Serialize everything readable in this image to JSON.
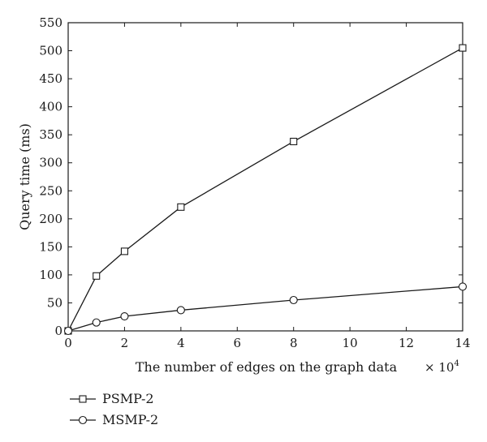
{
  "chart_data": {
    "type": "line",
    "title": "",
    "xlabel": "The number of edges on the graph data",
    "ylabel": "Query time (ms)",
    "x_multiplier_label": {
      "base": "× 10",
      "exponent": "4"
    },
    "xlim": [
      0,
      14
    ],
    "ylim": [
      0,
      550
    ],
    "xticks": [
      0,
      2,
      4,
      6,
      8,
      10,
      12,
      14
    ],
    "yticks": [
      0,
      50,
      100,
      150,
      200,
      250,
      300,
      350,
      400,
      450,
      500,
      550
    ],
    "xtick_labels": [
      "0",
      "2",
      "4",
      "6",
      "8",
      "10",
      "12",
      "14"
    ],
    "ytick_labels": [
      "0",
      "50",
      "100",
      "150",
      "200",
      "250",
      "300",
      "350",
      "400",
      "450",
      "500",
      "550"
    ],
    "grid": false,
    "legend_placement": "below-left",
    "series": [
      {
        "name": "PSMP-2",
        "marker": "square",
        "x": [
          0,
          1,
          2,
          4,
          8,
          14
        ],
        "y": [
          0,
          98,
          142,
          221,
          338,
          505
        ]
      },
      {
        "name": "MSMP-2",
        "marker": "circle",
        "x": [
          0,
          1,
          2,
          4,
          8,
          14
        ],
        "y": [
          0,
          15,
          26,
          37,
          55,
          79
        ]
      }
    ],
    "colors": {
      "line": "#1a1a1a",
      "marker_fill": "#ffffff"
    }
  }
}
